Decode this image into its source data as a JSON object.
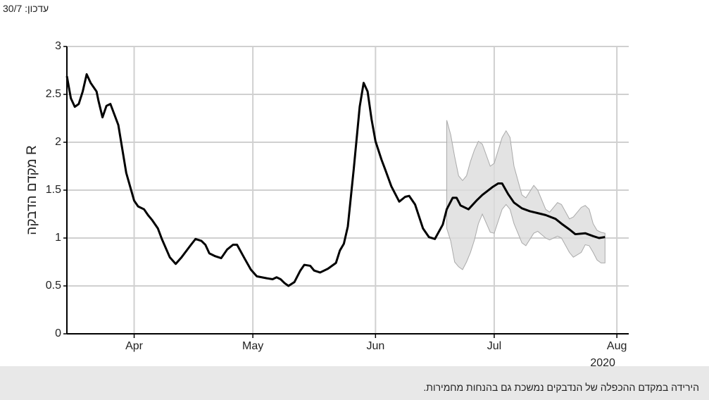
{
  "chart_data": {
    "type": "line",
    "update_label": "עדכון: 30/7",
    "ylabel": "מקדם הדבקה R",
    "caption": "הירידה במקדם ההכפלה של הנדבקים נמשכת גם בהנחות מחמירות.",
    "year_label": "2020",
    "color": "#000000",
    "x": [
      0,
      1,
      2,
      3,
      4,
      5,
      6,
      7.5,
      8,
      9,
      10,
      11,
      13,
      15,
      17,
      18,
      19.5,
      20.5,
      21.5,
      23,
      24,
      26,
      27.5,
      29,
      31,
      32.5,
      34,
      35,
      36,
      37.5,
      39,
      40.5,
      42,
      43,
      45,
      46.5,
      48,
      50.5,
      52,
      53,
      54,
      55,
      56,
      57.5,
      59,
      60,
      61.5,
      62.5,
      64,
      66,
      68,
      69,
      70,
      71,
      72.5,
      74,
      75,
      76,
      77,
      78,
      79.5,
      80.5,
      82,
      84,
      85.5,
      86.5,
      88,
      90,
      91.5,
      93,
      95,
      96,
      97.5,
      98.5,
      99.5,
      101.5,
      103.5,
      105,
      107.5,
      109,
      110,
      111.5,
      113,
      115,
      117,
      119,
      121,
      123.5,
      125,
      127,
      128.5,
      131,
      133,
      134.5,
      136
    ],
    "values": [
      2.69,
      2.46,
      2.37,
      2.4,
      2.53,
      2.71,
      2.62,
      2.53,
      2.43,
      2.26,
      2.38,
      2.4,
      2.18,
      1.68,
      1.39,
      1.33,
      1.3,
      1.24,
      1.19,
      1.1,
      0.99,
      0.8,
      0.73,
      0.8,
      0.91,
      0.99,
      0.97,
      0.93,
      0.84,
      0.81,
      0.79,
      0.88,
      0.93,
      0.93,
      0.78,
      0.67,
      0.6,
      0.58,
      0.57,
      0.59,
      0.57,
      0.53,
      0.5,
      0.54,
      0.66,
      0.72,
      0.71,
      0.66,
      0.64,
      0.68,
      0.74,
      0.87,
      0.94,
      1.12,
      1.72,
      2.37,
      2.62,
      2.53,
      2.24,
      2.01,
      1.82,
      1.71,
      1.54,
      1.38,
      1.43,
      1.44,
      1.35,
      1.1,
      1.01,
      0.99,
      1.14,
      1.3,
      1.42,
      1.42,
      1.34,
      1.3,
      1.39,
      1.45,
      1.53,
      1.57,
      1.57,
      1.46,
      1.37,
      1.31,
      1.28,
      1.26,
      1.24,
      1.2,
      1.15,
      1.09,
      1.04,
      1.05,
      1.02,
      1.0,
      1.01
    ],
    "band": {
      "color": "#dcdcdc",
      "x": [
        96,
        97,
        98,
        99,
        100,
        101,
        102,
        103,
        104,
        105,
        107,
        108,
        110,
        111,
        112,
        113,
        115,
        116,
        118,
        119,
        121,
        122,
        124,
        125,
        127,
        128,
        130,
        131,
        132,
        133,
        134,
        135,
        136
      ],
      "upper": [
        2.23,
        2.08,
        1.85,
        1.65,
        1.6,
        1.65,
        1.8,
        1.92,
        2.01,
        1.98,
        1.75,
        1.78,
        2.05,
        2.12,
        2.05,
        1.75,
        1.45,
        1.42,
        1.55,
        1.5,
        1.3,
        1.27,
        1.37,
        1.35,
        1.2,
        1.22,
        1.32,
        1.34,
        1.3,
        1.15,
        1.08,
        1.06,
        1.05
      ],
      "lower": [
        1.1,
        0.97,
        0.75,
        0.7,
        0.67,
        0.75,
        0.85,
        0.98,
        1.15,
        1.25,
        1.06,
        1.05,
        1.3,
        1.35,
        1.3,
        1.15,
        0.95,
        0.92,
        1.05,
        1.07,
        1.0,
        0.98,
        1.02,
        1.0,
        0.85,
        0.8,
        0.85,
        0.93,
        0.92,
        0.85,
        0.77,
        0.74,
        0.74
      ]
    },
    "xlim": [
      0,
      142
    ],
    "xticks": [
      {
        "value": 17,
        "label": "Apr"
      },
      {
        "value": 47,
        "label": "May"
      },
      {
        "value": 78,
        "label": "Jun"
      },
      {
        "value": 108,
        "label": "Jul"
      },
      {
        "value": 139,
        "label": "Aug"
      }
    ],
    "ylim": [
      0,
      3
    ],
    "yticks": [
      0,
      0.5,
      1,
      1.5,
      2,
      2.5,
      3
    ],
    "grid": true
  }
}
